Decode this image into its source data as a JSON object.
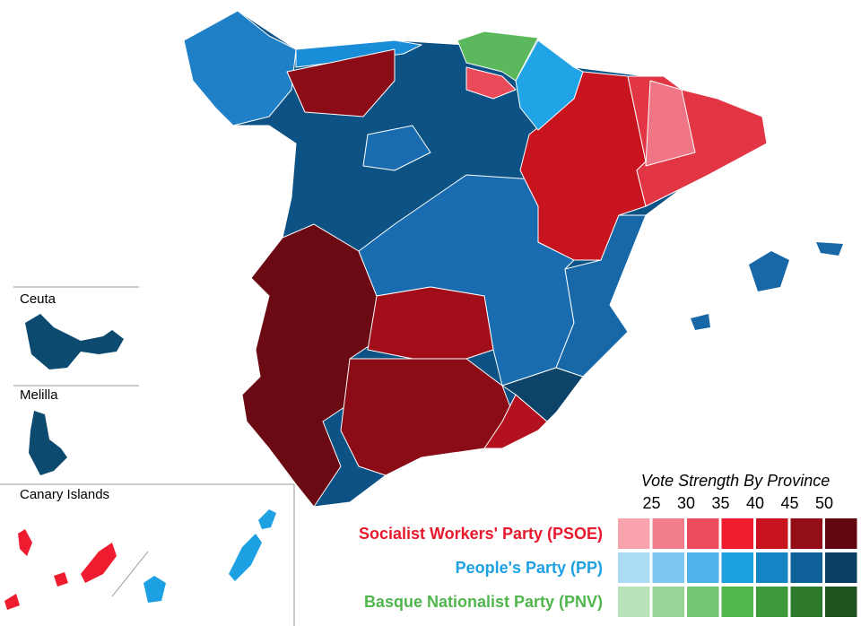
{
  "insets": [
    {
      "label": "Ceuta"
    },
    {
      "label": "Melilla"
    },
    {
      "label": "Canary Islands"
    }
  ],
  "legend": {
    "title": "Vote Strength By Province",
    "ticks": [
      25,
      30,
      35,
      40,
      45,
      50
    ],
    "parties": [
      {
        "name": "Socialist Workers' Party (PSOE)",
        "color": "#e8192c",
        "swatches": [
          "#f8a3ad",
          "#f27e8c",
          "#ed4c5c",
          "#ee1c2e",
          "#c8141f",
          "#930e17",
          "#62070f"
        ]
      },
      {
        "name": "People's Party (PP)",
        "color": "#1da1e3",
        "swatches": [
          "#acdcf4",
          "#7cc6f0",
          "#4db3ea",
          "#1da1e3",
          "#1684c4",
          "#0f6199",
          "#0a3e65"
        ]
      },
      {
        "name": "Basque Nationalist Party (PNV)",
        "color": "#50b64d",
        "swatches": [
          "#b9e2b8",
          "#98d495",
          "#76c573",
          "#50b64d",
          "#3d9a3a",
          "#2e7a2c",
          "#1f5420"
        ]
      }
    ]
  }
}
